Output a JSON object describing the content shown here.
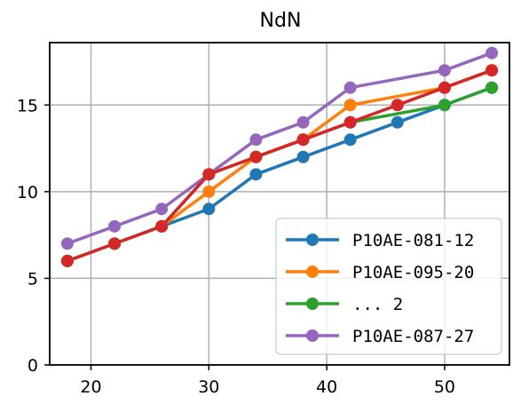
{
  "chart_data": {
    "type": "line",
    "title": "NdN",
    "xlabel": "",
    "ylabel": "",
    "xlim": [
      16.5,
      55.5
    ],
    "ylim": [
      0,
      18.6
    ],
    "xticks": [
      20,
      30,
      40,
      50
    ],
    "yticks": [
      0,
      5,
      10,
      15
    ],
    "grid": true,
    "legend_position": "lower-right",
    "series": [
      {
        "name": "P10AE-081-12",
        "color": "#1f77b4",
        "points": [
          [
            18,
            6
          ],
          [
            22,
            7
          ],
          [
            26,
            8
          ],
          [
            30,
            9
          ],
          [
            34,
            11
          ],
          [
            38,
            12
          ],
          [
            42,
            13
          ],
          [
            46,
            14
          ],
          [
            50,
            15
          ],
          [
            54,
            16
          ]
        ]
      },
      {
        "name": "P10AE-095-20",
        "color": "#ff7f0e",
        "points": [
          [
            18,
            6
          ],
          [
            22,
            7
          ],
          [
            26,
            8
          ],
          [
            30,
            10
          ],
          [
            34,
            12
          ],
          [
            38,
            13
          ],
          [
            42,
            15
          ],
          [
            50,
            16
          ],
          [
            54,
            17
          ]
        ]
      },
      {
        "name": "... 2",
        "color": "#2ca02c",
        "points": [
          [
            18,
            6
          ],
          [
            22,
            7
          ],
          [
            26,
            8
          ],
          [
            30,
            11
          ],
          [
            34,
            12
          ],
          [
            38,
            13
          ],
          [
            42,
            14
          ],
          [
            50,
            15
          ],
          [
            54,
            16
          ]
        ]
      },
      {
        "name": "P10AE-087-27",
        "color": "#9467bd",
        "points": [
          [
            18,
            7
          ],
          [
            22,
            8
          ],
          [
            26,
            9
          ],
          [
            30,
            11
          ],
          [
            34,
            13
          ],
          [
            38,
            14
          ],
          [
            42,
            16
          ],
          [
            50,
            17
          ],
          [
            54,
            18
          ]
        ]
      },
      {
        "name": "",
        "color": "#d62728",
        "points": [
          [
            18,
            6
          ],
          [
            22,
            7
          ],
          [
            26,
            8
          ],
          [
            30,
            11
          ],
          [
            34,
            12
          ],
          [
            38,
            13
          ],
          [
            42,
            14
          ],
          [
            46,
            15
          ],
          [
            50,
            16
          ],
          [
            54,
            17
          ]
        ]
      }
    ],
    "legend_entries": [
      0,
      1,
      2,
      3
    ]
  }
}
